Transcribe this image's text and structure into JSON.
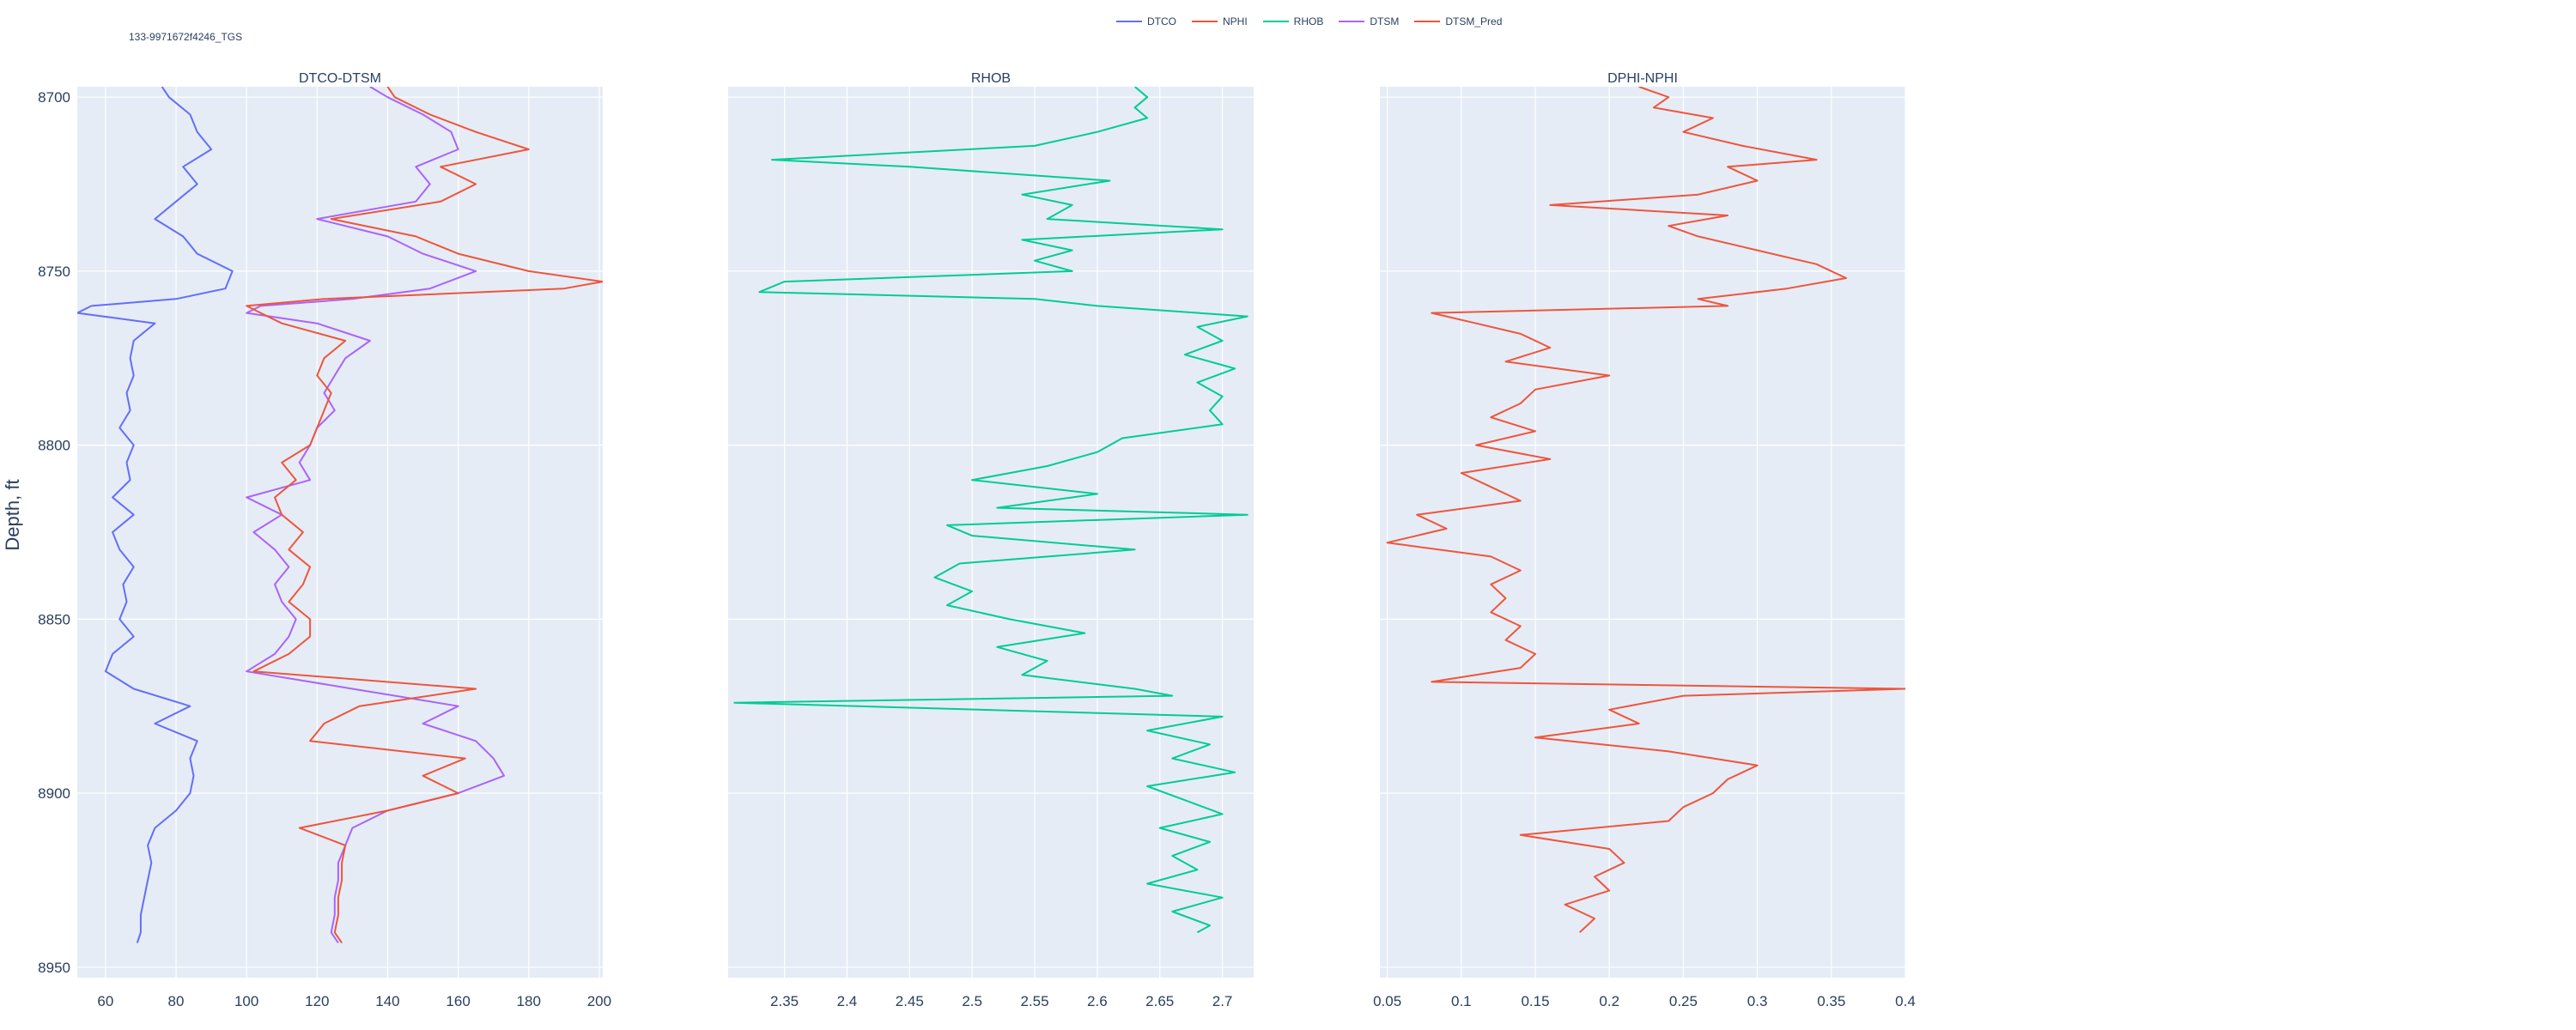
{
  "well_label": "133-9971672f4246_TGS",
  "legend": [
    {
      "name": "DTCO",
      "color": "#636efa"
    },
    {
      "name": "NPHI",
      "color": "#ef553b"
    },
    {
      "name": "RHOB",
      "color": "#00cc96"
    },
    {
      "name": "DTSM",
      "color": "#ab63fa"
    },
    {
      "name": "DTSM_Pred",
      "color": "#ef553b"
    }
  ],
  "colors": {
    "plot_bg": "#e5ecf6",
    "grid": "#ffffff",
    "text": "#2a3f5f"
  },
  "chart_data": {
    "type": "line",
    "ylabel": "Depth, ft",
    "ylim": [
      8953,
      8697
    ],
    "yticks": [
      8700,
      8750,
      8800,
      8850,
      8900,
      8950
    ],
    "y_reversed": true,
    "panels": [
      {
        "title": "DTCO-DTSM",
        "xlim": [
          52,
          201
        ],
        "xticks": [
          60,
          80,
          100,
          120,
          140,
          160,
          180,
          200
        ],
        "series": [
          {
            "name": "DTCO",
            "color": "#636efa",
            "y": [
              8697,
              8700,
              8705,
              8710,
              8715,
              8720,
              8725,
              8730,
              8735,
              8740,
              8745,
              8750,
              8755,
              8758,
              8760,
              8762,
              8765,
              8770,
              8775,
              8780,
              8785,
              8790,
              8795,
              8800,
              8805,
              8810,
              8815,
              8820,
              8825,
              8830,
              8835,
              8840,
              8845,
              8850,
              8855,
              8860,
              8865,
              8870,
              8875,
              8880,
              8885,
              8890,
              8895,
              8900,
              8905,
              8910,
              8915,
              8920,
              8925,
              8930,
              8935,
              8940,
              8943
            ],
            "x": [
              76,
              78,
              84,
              86,
              90,
              82,
              86,
              80,
              74,
              82,
              86,
              96,
              94,
              80,
              56,
              52,
              74,
              68,
              67,
              68,
              66,
              67,
              64,
              68,
              66,
              67,
              62,
              68,
              62,
              64,
              68,
              65,
              66,
              64,
              68,
              62,
              60,
              68,
              84,
              74,
              86,
              84,
              85,
              84,
              80,
              74,
              72,
              73,
              72,
              71,
              70,
              70,
              69
            ]
          },
          {
            "name": "DTSM",
            "color": "#ab63fa",
            "y": [
              8697,
              8700,
              8705,
              8710,
              8715,
              8720,
              8725,
              8730,
              8735,
              8740,
              8745,
              8750,
              8755,
              8758,
              8760,
              8762,
              8765,
              8770,
              8775,
              8780,
              8785,
              8790,
              8795,
              8800,
              8805,
              8810,
              8815,
              8820,
              8825,
              8830,
              8835,
              8840,
              8845,
              8850,
              8855,
              8860,
              8865,
              8870,
              8875,
              8880,
              8885,
              8890,
              8895,
              8900,
              8905,
              8910,
              8915,
              8920,
              8925,
              8930,
              8935,
              8940,
              8943
            ],
            "x": [
              135,
              140,
              150,
              158,
              160,
              148,
              152,
              148,
              120,
              140,
              150,
              165,
              152,
              130,
              104,
              100,
              120,
              135,
              128,
              125,
              122,
              125,
              120,
              118,
              115,
              118,
              100,
              110,
              102,
              108,
              112,
              108,
              110,
              114,
              112,
              108,
              100,
              130,
              160,
              150,
              165,
              170,
              173,
              160,
              140,
              130,
              128,
              126,
              126,
              125,
              125,
              124,
              126
            ]
          },
          {
            "name": "DTSM_Pred",
            "color": "#ef553b",
            "y": [
              8697,
              8700,
              8705,
              8710,
              8715,
              8720,
              8725,
              8730,
              8735,
              8740,
              8745,
              8750,
              8753,
              8755,
              8758,
              8760,
              8762,
              8765,
              8770,
              8775,
              8780,
              8785,
              8790,
              8795,
              8800,
              8805,
              8810,
              8815,
              8820,
              8825,
              8830,
              8835,
              8840,
              8845,
              8850,
              8855,
              8860,
              8865,
              8870,
              8875,
              8880,
              8885,
              8890,
              8895,
              8900,
              8905,
              8910,
              8915,
              8920,
              8925,
              8930,
              8935,
              8940,
              8943
            ],
            "x": [
              140,
              142,
              152,
              165,
              180,
              155,
              165,
              155,
              124,
              148,
              160,
              180,
              201,
              190,
              122,
              100,
              104,
              110,
              128,
              122,
              120,
              124,
              122,
              120,
              118,
              110,
              114,
              108,
              110,
              116,
              112,
              118,
              116,
              112,
              118,
              118,
              112,
              102,
              165,
              132,
              122,
              118,
              162,
              150,
              160,
              140,
              115,
              128,
              127,
              127,
              126,
              126,
              125,
              127
            ]
          }
        ]
      },
      {
        "title": "RHOB",
        "xlim": [
          2.305,
          2.725
        ],
        "xticks": [
          2.35,
          2.4,
          2.45,
          2.5,
          2.55,
          2.6,
          2.65,
          2.7
        ],
        "series": [
          {
            "name": "RHOB",
            "color": "#00cc96",
            "y": [
              8697,
              8700,
              8703,
              8706,
              8710,
              8714,
              8718,
              8720,
              8724,
              8728,
              8731,
              8735,
              8738,
              8741,
              8744,
              8747,
              8750,
              8753,
              8756,
              8758,
              8760,
              8763,
              8766,
              8770,
              8774,
              8778,
              8782,
              8786,
              8790,
              8794,
              8798,
              8802,
              8806,
              8810,
              8814,
              8818,
              8820,
              8823,
              8826,
              8830,
              8834,
              8838,
              8842,
              8846,
              8850,
              8854,
              8858,
              8862,
              8866,
              8870,
              8872,
              8874,
              8878,
              8882,
              8886,
              8890,
              8894,
              8898,
              8902,
              8906,
              8910,
              8914,
              8918,
              8922,
              8926,
              8930,
              8934,
              8938,
              8940
            ],
            "y_is_depth": true,
            "x": [
              2.63,
              2.64,
              2.63,
              2.64,
              2.6,
              2.55,
              2.34,
              2.45,
              2.61,
              2.54,
              2.58,
              2.56,
              2.7,
              2.54,
              2.58,
              2.55,
              2.58,
              2.35,
              2.33,
              2.55,
              2.6,
              2.72,
              2.68,
              2.7,
              2.67,
              2.71,
              2.68,
              2.7,
              2.69,
              2.7,
              2.62,
              2.6,
              2.56,
              2.5,
              2.6,
              2.52,
              2.72,
              2.48,
              2.5,
              2.63,
              2.49,
              2.47,
              2.5,
              2.48,
              2.53,
              2.59,
              2.52,
              2.56,
              2.54,
              2.63,
              2.66,
              2.31,
              2.7,
              2.64,
              2.69,
              2.66,
              2.71,
              2.64,
              2.67,
              2.7,
              2.65,
              2.69,
              2.66,
              2.68,
              2.64,
              2.7,
              2.66,
              2.69,
              2.68
            ]
          }
        ]
      },
      {
        "title": "DPHI-NPHI",
        "xlim": [
          0.045,
          0.4
        ],
        "xticks": [
          0.05,
          0.1,
          0.15,
          0.2,
          0.25,
          0.3,
          0.35,
          0.4
        ],
        "series": [
          {
            "name": "NPHI",
            "color": "#ef553b",
            "y": [
              8697,
              8700,
              8703,
              8706,
              8710,
              8714,
              8718,
              8720,
              8724,
              8728,
              8731,
              8734,
              8737,
              8740,
              8744,
              8748,
              8752,
              8755,
              8758,
              8760,
              8762,
              8765,
              8768,
              8772,
              8776,
              8780,
              8784,
              8788,
              8792,
              8796,
              8800,
              8804,
              8808,
              8812,
              8816,
              8820,
              8824,
              8828,
              8832,
              8836,
              8840,
              8844,
              8848,
              8852,
              8856,
              8860,
              8864,
              8868,
              8870,
              8872,
              8876,
              8880,
              8884,
              8888,
              8892,
              8896,
              8900,
              8904,
              8908,
              8912,
              8916,
              8920,
              8924,
              8928,
              8932,
              8936,
              8940
            ],
            "x": [
              0.22,
              0.24,
              0.23,
              0.27,
              0.25,
              0.29,
              0.34,
              0.28,
              0.3,
              0.26,
              0.16,
              0.28,
              0.24,
              0.26,
              0.3,
              0.34,
              0.36,
              0.32,
              0.26,
              0.28,
              0.08,
              0.11,
              0.14,
              0.16,
              0.13,
              0.2,
              0.15,
              0.14,
              0.12,
              0.15,
              0.11,
              0.16,
              0.1,
              0.12,
              0.14,
              0.07,
              0.09,
              0.05,
              0.12,
              0.14,
              0.12,
              0.13,
              0.12,
              0.14,
              0.13,
              0.15,
              0.14,
              0.08,
              0.4,
              0.25,
              0.2,
              0.22,
              0.15,
              0.24,
              0.3,
              0.28,
              0.27,
              0.25,
              0.24,
              0.14,
              0.2,
              0.21,
              0.19,
              0.2,
              0.17,
              0.19,
              0.18
            ]
          }
        ]
      }
    ]
  }
}
